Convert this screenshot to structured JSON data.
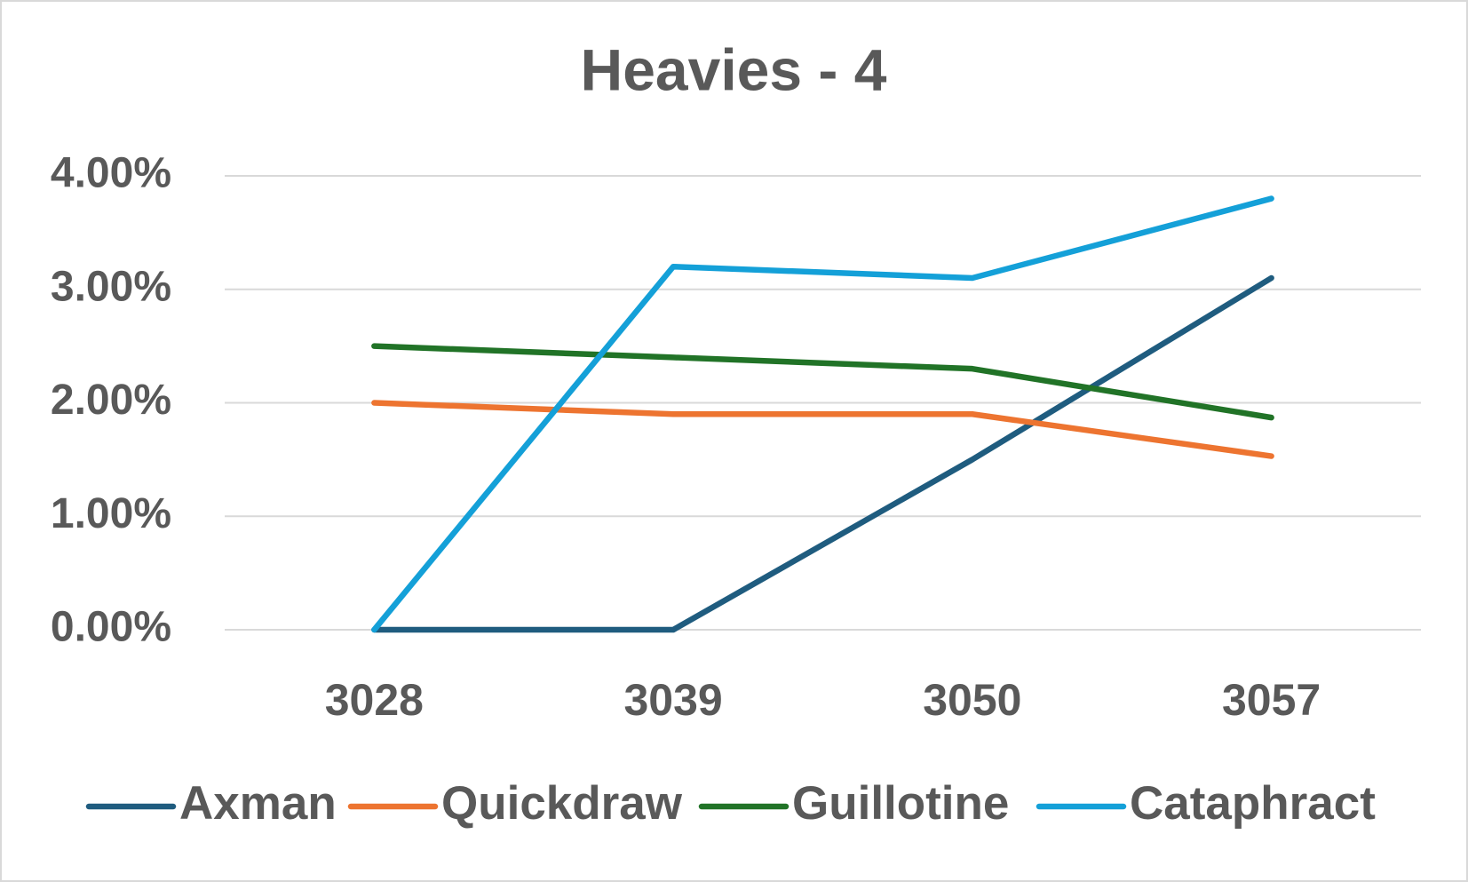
{
  "chart_data": {
    "type": "line",
    "title": "Heavies - 4",
    "categories": [
      "3028",
      "3039",
      "3050",
      "3057"
    ],
    "series": [
      {
        "name": "Axman",
        "color": "#1f5c7f",
        "values": [
          0,
          0,
          1.5,
          3.1
        ]
      },
      {
        "name": "Quickdraw",
        "color": "#ed7430",
        "values": [
          2.0,
          1.9,
          1.9,
          1.53
        ]
      },
      {
        "name": "Guillotine",
        "color": "#217327",
        "values": [
          2.5,
          2.4,
          2.3,
          1.87
        ]
      },
      {
        "name": "Cataphract",
        "color": "#14a0d8",
        "values": [
          0,
          3.2,
          3.1,
          3.8
        ]
      }
    ],
    "ylim": [
      0,
      4
    ],
    "yticks": [
      {
        "value": 0,
        "label": "0.00%"
      },
      {
        "value": 1,
        "label": "1.00%"
      },
      {
        "value": 2,
        "label": "2.00%"
      },
      {
        "value": 3,
        "label": "3.00%"
      },
      {
        "value": 4,
        "label": "4.00%"
      }
    ],
    "grid": true,
    "legend": "bottom"
  }
}
